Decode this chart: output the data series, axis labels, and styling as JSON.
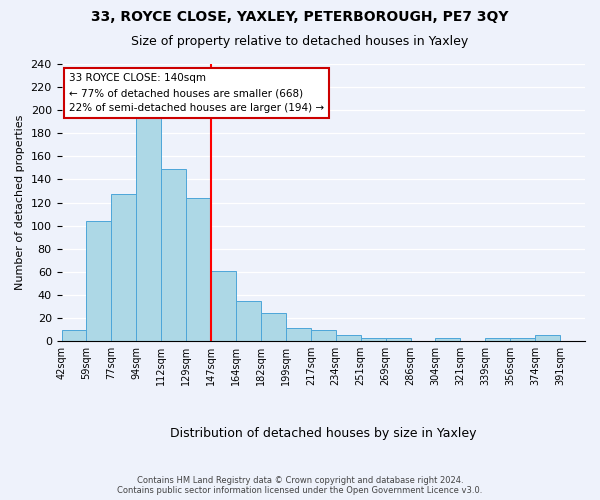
{
  "title1": "33, ROYCE CLOSE, YAXLEY, PETERBOROUGH, PE7 3QY",
  "title2": "Size of property relative to detached houses in Yaxley",
  "xlabel": "Distribution of detached houses by size in Yaxley",
  "ylabel": "Number of detached properties",
  "bin_labels": [
    "42sqm",
    "59sqm",
    "77sqm",
    "94sqm",
    "112sqm",
    "129sqm",
    "147sqm",
    "164sqm",
    "182sqm",
    "199sqm",
    "217sqm",
    "234sqm",
    "251sqm",
    "269sqm",
    "286sqm",
    "304sqm",
    "321sqm",
    "339sqm",
    "356sqm",
    "374sqm",
    "391sqm"
  ],
  "bar_heights": [
    10,
    104,
    127,
    198,
    149,
    124,
    61,
    35,
    24,
    11,
    10,
    5,
    3,
    3,
    0,
    3,
    0,
    3,
    3,
    5,
    0
  ],
  "bar_color": "#add8e6",
  "bar_edge_color": "#4da6d9",
  "vline_x": 6.0,
  "vline_color": "red",
  "annotation_title": "33 ROYCE CLOSE: 140sqm",
  "annotation_line1": "← 77% of detached houses are smaller (668)",
  "annotation_line2": "22% of semi-detached houses are larger (194) →",
  "annotation_box_color": "white",
  "annotation_box_edge": "#cc0000",
  "ylim": [
    0,
    240
  ],
  "yticks": [
    0,
    20,
    40,
    60,
    80,
    100,
    120,
    140,
    160,
    180,
    200,
    220,
    240
  ],
  "footer1": "Contains HM Land Registry data © Crown copyright and database right 2024.",
  "footer2": "Contains public sector information licensed under the Open Government Licence v3.0.",
  "bg_color": "#eef2fb"
}
